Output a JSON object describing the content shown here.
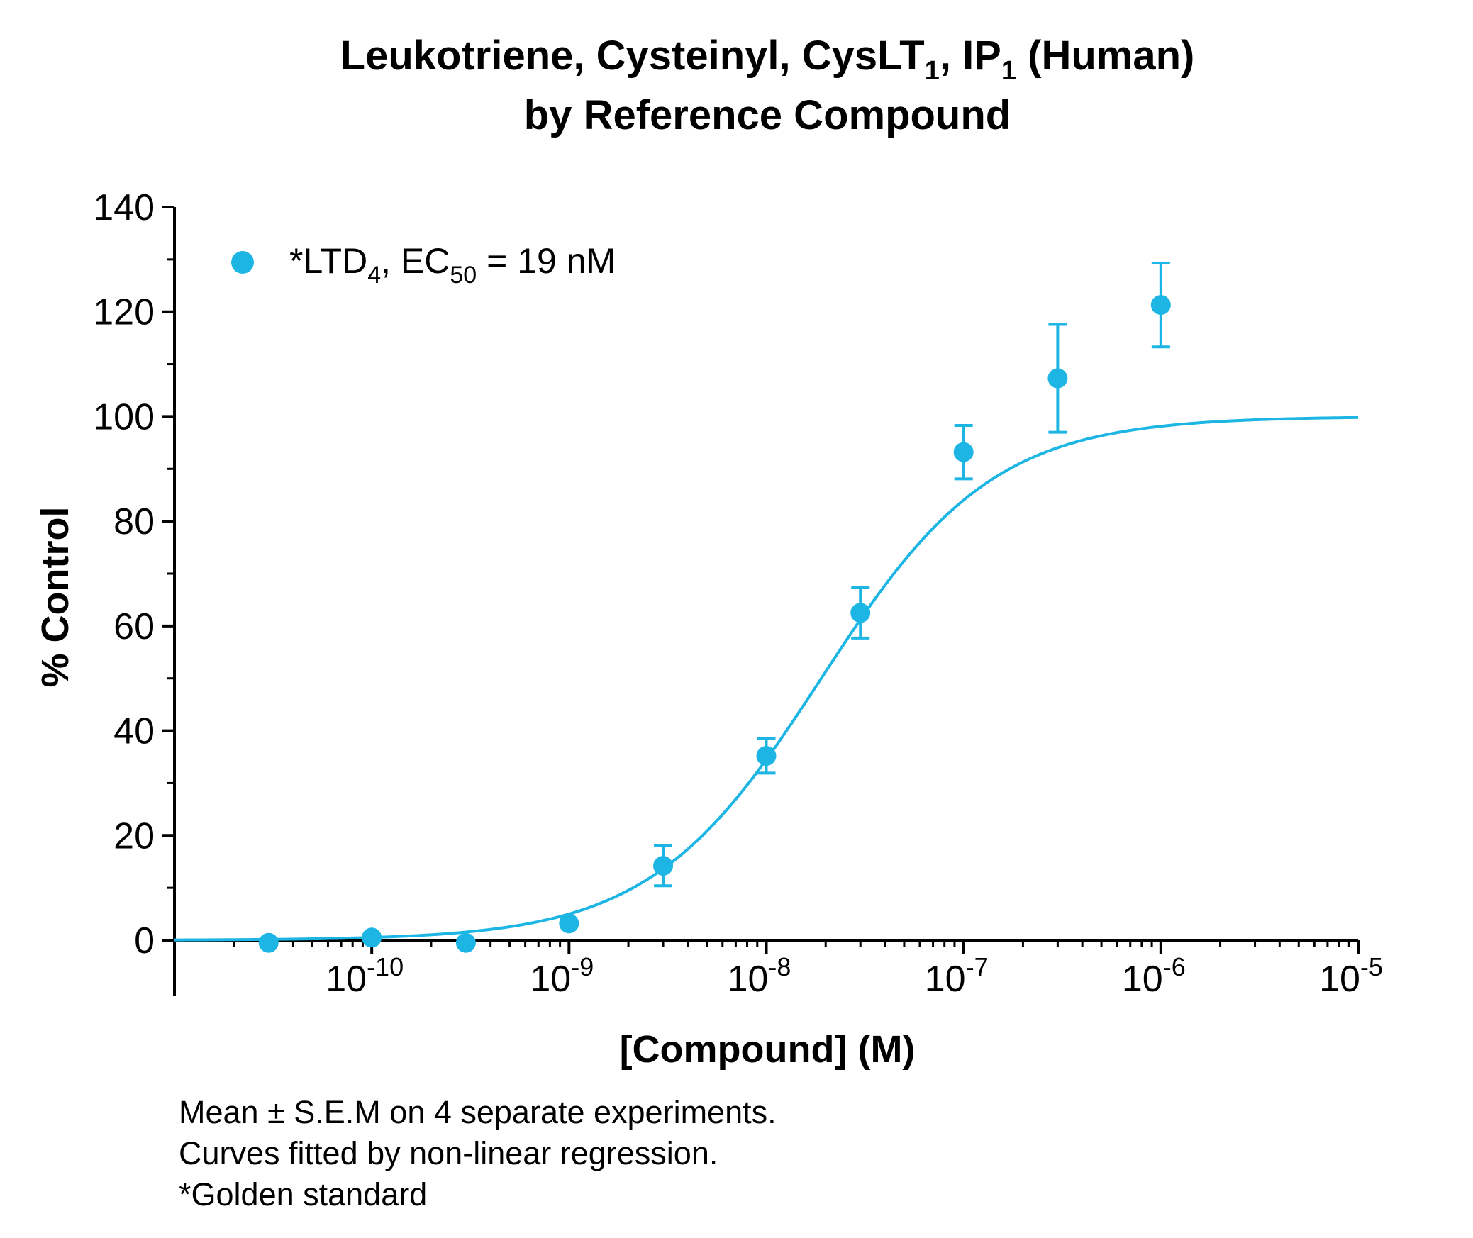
{
  "chart_data": {
    "type": "scatter",
    "title_line1": {
      "part1": "Leukotriene, Cysteinyl, CysLT",
      "sub1": "1",
      "part2": ", IP",
      "sub2": "1",
      "part3": " (Human)"
    },
    "title_line2": "by Reference Compound",
    "xlabel": "[Compound] (M)",
    "ylabel": "% Control",
    "x_scale": "log",
    "xlim": [
      1e-11,
      1e-05
    ],
    "ylim": [
      0,
      140
    ],
    "grid": false,
    "legend_position": "top-left",
    "series_color": "#1DB6E4",
    "y_ticks": [
      "0",
      "20",
      "40",
      "60",
      "80",
      "100",
      "120",
      "140"
    ],
    "x_ticks": [
      {
        "base": "10",
        "exp": "-10",
        "value": 1e-10
      },
      {
        "base": "10",
        "exp": "-9",
        "value": 1e-09
      },
      {
        "base": "10",
        "exp": "-8",
        "value": 1e-08
      },
      {
        "base": "10",
        "exp": "-7",
        "value": 1e-07
      },
      {
        "base": "10",
        "exp": "-6",
        "value": 1e-06
      },
      {
        "base": "10",
        "exp": "-5",
        "value": 1e-05
      }
    ],
    "series": [
      {
        "legend": {
          "prefix": "*LTD",
          "sub1": "4",
          "middle": ", EC",
          "sub2": "50",
          "suffix": " = 19 nM"
        },
        "points": [
          {
            "x": 3e-11,
            "y": -0.5,
            "err": 0
          },
          {
            "x": 1e-10,
            "y": 0.5,
            "err": 0
          },
          {
            "x": 3e-10,
            "y": -0.5,
            "err": 0
          },
          {
            "x": 1e-09,
            "y": 3.2,
            "err": 0
          },
          {
            "x": 3e-09,
            "y": 14.2,
            "err": 3.8
          },
          {
            "x": 1e-08,
            "y": 35.2,
            "err": 3.3
          },
          {
            "x": 3e-08,
            "y": 62.5,
            "err": 4.8
          },
          {
            "x": 1e-07,
            "y": 93.2,
            "err": 5.1
          },
          {
            "x": 3e-07,
            "y": 107.3,
            "err": 10.3
          },
          {
            "x": 1e-06,
            "y": 121.3,
            "err": 8.0
          }
        ],
        "fit": {
          "model": "sigmoid",
          "bottom": 0,
          "top": 100,
          "ec50": 1.9e-08,
          "hill": 1.0
        }
      }
    ]
  },
  "notes": [
    "Mean ± S.E.M on 4 separate experiments.",
    "Curves fitted by non-linear regression.",
    "*Golden standard"
  ]
}
